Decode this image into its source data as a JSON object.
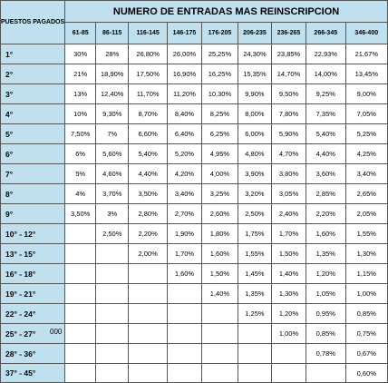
{
  "table": {
    "corner_label": "PUESTOS PAGADOS",
    "title": "NUMERO DE ENTRADAS MAS REINSCRIPCION",
    "ranges": [
      "61-85",
      "86-115",
      "116-145",
      "146-175",
      "176-205",
      "206-235",
      "236-265",
      "266-345",
      "346-400"
    ],
    "rows": [
      {
        "pos": "1°",
        "values": [
          "30%",
          "28%",
          "26,80%",
          "26,00%",
          "25,25%",
          "24,30%",
          "23,85%",
          "22,93%",
          "21,67%"
        ]
      },
      {
        "pos": "2°",
        "values": [
          "21%",
          "18,90%",
          "17,50%",
          "16,90%",
          "16,25%",
          "15,35%",
          "14,70%",
          "14,00%",
          "13,45%"
        ]
      },
      {
        "pos": "3°",
        "values": [
          "13%",
          "12,40%",
          "11,70%",
          "11,20%",
          "10,30%",
          "9,90%",
          "9,50%",
          "9,25%",
          "9,00%"
        ]
      },
      {
        "pos": "4°",
        "values": [
          "10%",
          "9,30%",
          "8,70%",
          "8,40%",
          "8,25%",
          "8,00%",
          "7,80%",
          "7,35%",
          "7,05%"
        ]
      },
      {
        "pos": "5°",
        "values": [
          "7,50%",
          "7%",
          "6,60%",
          "6,40%",
          "6,25%",
          "6,00%",
          "5,90%",
          "5,40%",
          "5,25%"
        ]
      },
      {
        "pos": "6°",
        "values": [
          "6%",
          "5,60%",
          "5,40%",
          "5,20%",
          "4,95%",
          "4,80%",
          "4,70%",
          "4,40%",
          "4,25%"
        ]
      },
      {
        "pos": "7°",
        "values": [
          "5%",
          "4,60%",
          "4,40%",
          "4,20%",
          "4,00%",
          "3,90%",
          "3,80%",
          "3,60%",
          "3,40%"
        ]
      },
      {
        "pos": "8°",
        "values": [
          "4%",
          "3,70%",
          "3,50%",
          "3,40%",
          "3,25%",
          "3,20%",
          "3,05%",
          "2,85%",
          "2,65%"
        ]
      },
      {
        "pos": "9°",
        "values": [
          "3,50%",
          "3%",
          "2,80%",
          "2,70%",
          "2,60%",
          "2,50%",
          "2,40%",
          "2,20%",
          "2,05%"
        ]
      },
      {
        "pos": "10° - 12°",
        "values": [
          "",
          "2,50%",
          "2,20%",
          "1,90%",
          "1,80%",
          "1,75%",
          "1,70%",
          "1,60%",
          "1,55%"
        ]
      },
      {
        "pos": "13° - 15°",
        "values": [
          "",
          "",
          "2,00%",
          "1,70%",
          "1,60%",
          "1,55%",
          "1,50%",
          "1,35%",
          "1,30%"
        ]
      },
      {
        "pos": "16° - 18°",
        "values": [
          "",
          "",
          "",
          "1,60%",
          "1,50%",
          "1,45%",
          "1,40%",
          "1,20%",
          "1,15%"
        ]
      },
      {
        "pos": "19° - 21°",
        "values": [
          "",
          "",
          "",
          "",
          "1,40%",
          "1,35%",
          "1,30%",
          "1,05%",
          "1,00%"
        ]
      },
      {
        "pos": "22° - 24°",
        "values": [
          "",
          "",
          "",
          "",
          "",
          "1,25%",
          "1,20%",
          "0,95%",
          "0,85%"
        ]
      },
      {
        "pos": "25° - 27°",
        "values": [
          "",
          "",
          "",
          "",
          "",
          "",
          "1,00%",
          "0,85%",
          "0,75%"
        ]
      },
      {
        "pos": "28° - 36°",
        "values": [
          "",
          "",
          "",
          "",
          "",
          "",
          "",
          "0,78%",
          "0,67%"
        ]
      },
      {
        "pos": "37° - 45°",
        "values": [
          "",
          "",
          "",
          "",
          "",
          "",
          "",
          "",
          "0,60%"
        ]
      }
    ],
    "stray_text": "000"
  }
}
